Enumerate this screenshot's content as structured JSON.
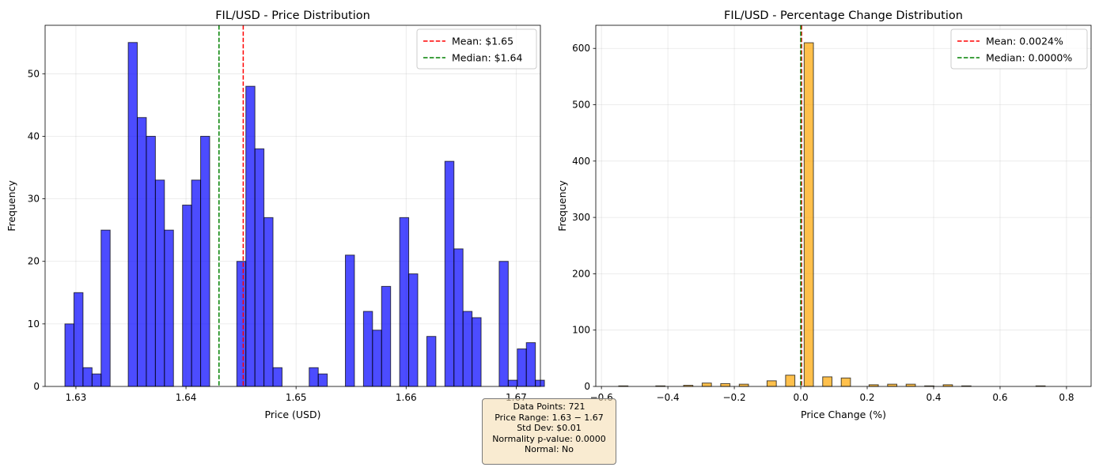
{
  "chart_data": [
    {
      "type": "bar",
      "title": "FIL/USD - Price Distribution",
      "xlabel": "Price (USD)",
      "ylabel": "Frequency",
      "xlim": [
        1.6272,
        1.6722
      ],
      "ylim": [
        0,
        57.75
      ],
      "xticks": [
        1.63,
        1.64,
        1.65,
        1.66,
        1.67
      ],
      "xtick_labels": [
        "1.63",
        "1.64",
        "1.65",
        "1.66",
        "1.67"
      ],
      "yticks": [
        0,
        10,
        20,
        30,
        40,
        50
      ],
      "bin_start": 1.629,
      "bin_width": 0.000822,
      "values": [
        10,
        15,
        3,
        2,
        25,
        0,
        0,
        55,
        43,
        40,
        33,
        25,
        0,
        29,
        33,
        40,
        0,
        0,
        0,
        20,
        48,
        38,
        27,
        3,
        0,
        0,
        0,
        3,
        2,
        0,
        0,
        21,
        0,
        12,
        9,
        16,
        0,
        27,
        18,
        0,
        8,
        0,
        36,
        22,
        12,
        11,
        0,
        0,
        20,
        1,
        6,
        7,
        1
      ],
      "bar_color": "#0000ff",
      "edge_color": "#000000",
      "vlines": [
        {
          "x": 1.6452,
          "color": "#ff0000",
          "label": "Mean: $1.65"
        },
        {
          "x": 1.643,
          "color": "#008000",
          "label": "Median: $1.64"
        }
      ],
      "legend": "top-right",
      "grid": true
    },
    {
      "type": "bar",
      "title": "FIL/USD - Percentage Change Distribution",
      "xlabel": "Price Change (%)",
      "ylabel": "Frequency",
      "xlim": [
        -0.617,
        0.874
      ],
      "ylim": [
        0,
        641
      ],
      "xticks": [
        -0.6,
        -0.4,
        -0.2,
        0.0,
        0.2,
        0.4,
        0.6,
        0.8
      ],
      "xtick_labels": [
        "−0.6",
        "−0.4",
        "−0.2",
        "0.0",
        "0.2",
        "0.4",
        "0.6",
        "0.8"
      ],
      "yticks": [
        0,
        100,
        200,
        300,
        400,
        500,
        600
      ],
      "bin_start": -0.548,
      "bin_width": 0.02791,
      "values": [
        1,
        0,
        0,
        0,
        1,
        0,
        0,
        2,
        0,
        6,
        0,
        5,
        0,
        4,
        0,
        0,
        10,
        0,
        20,
        0,
        610,
        0,
        17,
        0,
        15,
        0,
        0,
        3,
        0,
        4,
        0,
        4,
        0,
        1,
        0,
        3,
        0,
        1,
        0,
        0,
        0,
        0,
        0,
        0,
        0,
        1,
        0,
        0,
        0,
        0,
        0,
        0,
        0,
        1
      ],
      "bar_color": "#ffa500",
      "edge_color": "#000000",
      "vlines": [
        {
          "x": 0.0024,
          "color": "#ff0000",
          "label": "Mean: 0.0024%"
        },
        {
          "x": 0.0,
          "color": "#008000",
          "label": "Median: 0.0000%"
        }
      ],
      "legend": "top-right",
      "grid": true
    }
  ],
  "stats": {
    "line1": "Data Points: 721",
    "line2": "Price Range: 1.63 − 1.67",
    "line3": "Std Dev: $0.01",
    "line4": "Normality p-value: 0.0000",
    "line5": "Normal: No"
  }
}
